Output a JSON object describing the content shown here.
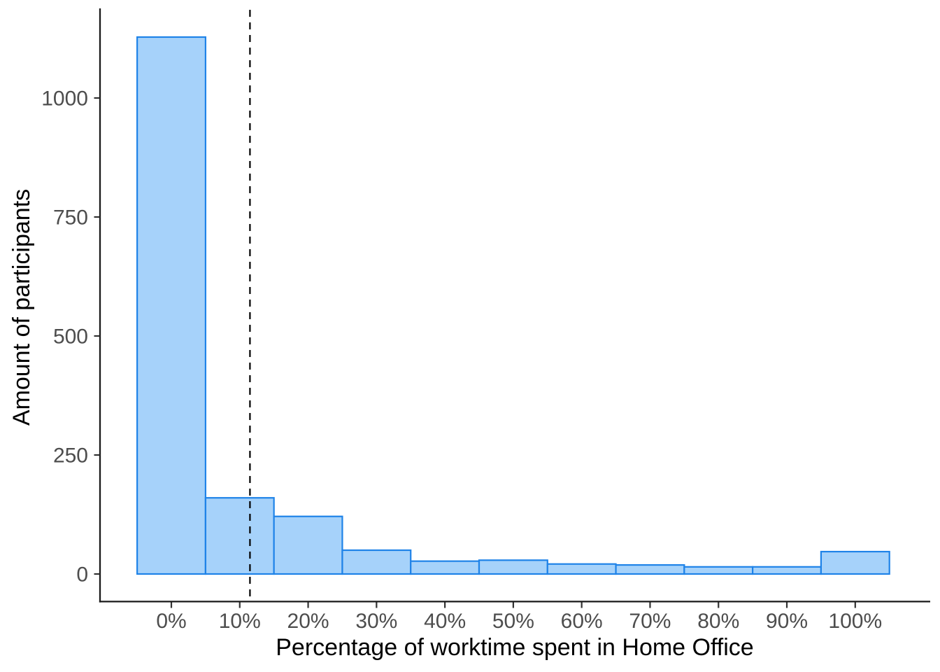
{
  "chart_data": {
    "type": "bar",
    "subtype": "histogram",
    "title": "",
    "xlabel": "Percentage of worktime spent in Home Office",
    "ylabel": "Amount of participants",
    "categories": [
      "0%",
      "10%",
      "20%",
      "30%",
      "40%",
      "50%",
      "60%",
      "70%",
      "80%",
      "90%",
      "100%"
    ],
    "bin_centers_percent": [
      0,
      10,
      20,
      30,
      40,
      50,
      60,
      70,
      80,
      90,
      100
    ],
    "bin_width_percent": 10,
    "values": [
      1128,
      160,
      121,
      50,
      27,
      29,
      21,
      19,
      15,
      15,
      47
    ],
    "y_tick_values": [
      0,
      250,
      500,
      750,
      1000
    ],
    "y_tick_labels": [
      "0",
      "250",
      "500",
      "750",
      "1000"
    ],
    "x_tick_percents": [
      0,
      10,
      20,
      30,
      40,
      50,
      60,
      70,
      80,
      90,
      100
    ],
    "x_tick_labels": [
      "0%",
      "10%",
      "20%",
      "30%",
      "40%",
      "50%",
      "60%",
      "70%",
      "80%",
      "90%",
      "100%"
    ],
    "xlim_percent": [
      -10,
      111
    ],
    "ylim": [
      0,
      1190
    ],
    "grid": false,
    "legend": false,
    "reference_line": {
      "orientation": "vertical",
      "x_percent": 11.5,
      "style": "dashed",
      "color": "#000000"
    },
    "colors": {
      "bar_fill": "#A6D2FA",
      "bar_stroke": "#1F83E8",
      "axis_line": "#1a1a1a",
      "tick_mark": "#333333",
      "tick_label": "#4d4d4d",
      "axis_title": "#000000",
      "background": "#FFFFFF"
    }
  }
}
